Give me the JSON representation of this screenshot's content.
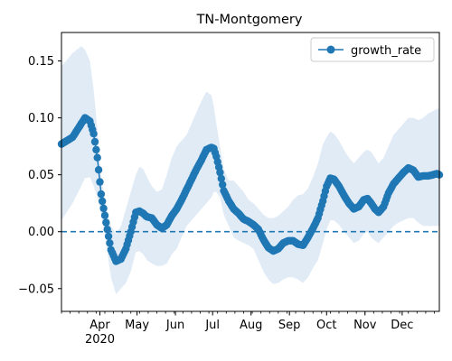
{
  "chart_data": {
    "type": "line",
    "title": "TN-Montgomery",
    "xlabel": "",
    "ylabel": "",
    "x_range": [
      "2020-03-01",
      "2020-12-31"
    ],
    "ylim": [
      -0.07,
      0.175
    ],
    "y_ticks": [
      -0.05,
      0.0,
      0.05,
      0.1,
      0.15
    ],
    "y_tick_labels": [
      "−0.05",
      "0.00",
      "0.05",
      "0.10",
      "0.15"
    ],
    "x_ticks": [
      {
        "date": "2020-04-01",
        "label": "Apr",
        "sublabel": "2020"
      },
      {
        "date": "2020-05-01",
        "label": "May"
      },
      {
        "date": "2020-06-01",
        "label": "Jun"
      },
      {
        "date": "2020-07-01",
        "label": "Jul"
      },
      {
        "date": "2020-08-01",
        "label": "Aug"
      },
      {
        "date": "2020-09-01",
        "label": "Sep"
      },
      {
        "date": "2020-10-01",
        "label": "Oct"
      },
      {
        "date": "2020-11-01",
        "label": "Nov"
      },
      {
        "date": "2020-12-01",
        "label": "Dec"
      }
    ],
    "reference_line": {
      "y": 0.0,
      "style": "dashed",
      "color": "#1f77b4"
    },
    "legend": {
      "position": "top-right",
      "entries": [
        "growth_rate"
      ]
    },
    "colors": {
      "series": "#1f77b4",
      "band": "#dce8f4"
    },
    "series": [
      {
        "name": "growth_rate",
        "x": [
          "2020-03-01",
          "2020-03-10",
          "2020-03-17",
          "2020-03-20",
          "2020-03-24",
          "2020-03-27",
          "2020-03-30",
          "2020-04-02",
          "2020-04-06",
          "2020-04-10",
          "2020-04-14",
          "2020-04-18",
          "2020-04-22",
          "2020-04-26",
          "2020-04-30",
          "2020-05-03",
          "2020-05-06",
          "2020-05-09",
          "2020-05-13",
          "2020-05-17",
          "2020-05-21",
          "2020-05-25",
          "2020-05-29",
          "2020-06-02",
          "2020-06-06",
          "2020-06-10",
          "2020-06-14",
          "2020-06-18",
          "2020-06-22",
          "2020-06-26",
          "2020-06-30",
          "2020-07-02",
          "2020-07-04",
          "2020-07-07",
          "2020-07-10",
          "2020-07-14",
          "2020-07-18",
          "2020-07-22",
          "2020-07-26",
          "2020-07-30",
          "2020-08-03",
          "2020-08-07",
          "2020-08-11",
          "2020-08-15",
          "2020-08-19",
          "2020-08-23",
          "2020-08-27",
          "2020-08-31",
          "2020-09-04",
          "2020-09-08",
          "2020-09-12",
          "2020-09-16",
          "2020-09-20",
          "2020-09-24",
          "2020-09-28",
          "2020-10-01",
          "2020-10-04",
          "2020-10-07",
          "2020-10-11",
          "2020-10-15",
          "2020-10-19",
          "2020-10-23",
          "2020-10-27",
          "2020-10-31",
          "2020-11-03",
          "2020-11-06",
          "2020-11-09",
          "2020-11-12",
          "2020-11-16",
          "2020-11-20",
          "2020-11-24",
          "2020-11-28",
          "2020-12-02",
          "2020-12-06",
          "2020-12-10",
          "2020-12-14",
          "2020-12-18",
          "2020-12-22",
          "2020-12-26",
          "2020-12-29",
          "2020-12-31"
        ],
        "values": [
          0.077,
          0.083,
          0.095,
          0.1,
          0.097,
          0.086,
          0.065,
          0.033,
          0.008,
          -0.016,
          -0.026,
          -0.024,
          -0.015,
          0.0,
          0.017,
          0.018,
          0.016,
          0.013,
          0.012,
          0.006,
          0.003,
          0.006,
          0.014,
          0.02,
          0.028,
          0.037,
          0.046,
          0.055,
          0.063,
          0.072,
          0.074,
          0.073,
          0.066,
          0.052,
          0.036,
          0.027,
          0.02,
          0.016,
          0.011,
          0.009,
          0.006,
          0.002,
          -0.007,
          -0.014,
          -0.017,
          -0.015,
          -0.01,
          -0.008,
          -0.008,
          -0.011,
          -0.012,
          -0.005,
          0.003,
          0.012,
          0.027,
          0.04,
          0.047,
          0.046,
          0.04,
          0.032,
          0.025,
          0.02,
          0.022,
          0.028,
          0.029,
          0.025,
          0.02,
          0.017,
          0.022,
          0.034,
          0.042,
          0.047,
          0.052,
          0.056,
          0.054,
          0.048,
          0.049,
          0.049,
          0.05,
          0.051,
          0.05
        ]
      }
    ],
    "band": {
      "upper": [
        0.145,
        0.157,
        0.163,
        0.16,
        0.15,
        0.125,
        0.09,
        0.048,
        0.022,
        0.005,
        -0.002,
        0.005,
        0.02,
        0.035,
        0.05,
        0.057,
        0.055,
        0.048,
        0.04,
        0.035,
        0.037,
        0.05,
        0.065,
        0.075,
        0.08,
        0.085,
        0.095,
        0.105,
        0.115,
        0.123,
        0.12,
        0.11,
        0.095,
        0.075,
        0.055,
        0.045,
        0.045,
        0.04,
        0.035,
        0.028,
        0.025,
        0.02,
        0.015,
        0.012,
        0.012,
        0.014,
        0.018,
        0.022,
        0.028,
        0.032,
        0.033,
        0.038,
        0.048,
        0.06,
        0.077,
        0.083,
        0.088,
        0.086,
        0.08,
        0.072,
        0.065,
        0.06,
        0.065,
        0.07,
        0.072,
        0.07,
        0.065,
        0.06,
        0.065,
        0.075,
        0.085,
        0.09,
        0.095,
        0.1,
        0.1,
        0.098,
        0.1,
        0.104,
        0.106,
        0.108,
        0.108
      ],
      "lower": [
        0.01,
        0.025,
        0.04,
        0.047,
        0.048,
        0.04,
        0.03,
        0.015,
        -0.01,
        -0.04,
        -0.055,
        -0.05,
        -0.045,
        -0.035,
        -0.018,
        -0.017,
        -0.02,
        -0.025,
        -0.028,
        -0.03,
        -0.03,
        -0.028,
        -0.02,
        -0.015,
        -0.005,
        0.005,
        0.01,
        0.015,
        0.02,
        0.025,
        0.03,
        0.035,
        0.035,
        0.03,
        0.015,
        0.005,
        -0.005,
        -0.008,
        -0.01,
        -0.012,
        -0.015,
        -0.025,
        -0.035,
        -0.042,
        -0.046,
        -0.045,
        -0.042,
        -0.04,
        -0.04,
        -0.042,
        -0.045,
        -0.04,
        -0.032,
        -0.025,
        -0.01,
        0.002,
        0.01,
        0.01,
        0.006,
        0.0,
        -0.005,
        -0.01,
        -0.008,
        -0.002,
        0.0,
        -0.005,
        -0.008,
        -0.01,
        -0.005,
        0.0,
        0.005,
        0.008,
        0.01,
        0.012,
        0.012,
        0.008,
        0.005,
        0.005,
        0.005,
        0.005,
        0.005
      ]
    }
  }
}
